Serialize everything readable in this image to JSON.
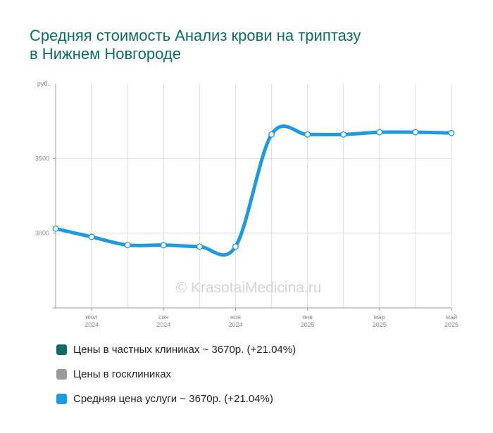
{
  "title": {
    "line1": "Средняя стоимость Анализ крови на триптазу",
    "line2": "в Нижнем Новгороде"
  },
  "watermark": "© KrasotaiMedicina.ru",
  "colors": {
    "title": "#0f6b63",
    "private": "#0f6b63",
    "public": "#9a9a9a",
    "average": "#2299dd"
  },
  "chart_data": {
    "type": "line",
    "unit_label": "руб.",
    "y_ticks": [
      "3000",
      "3500"
    ],
    "ylim": [
      2500,
      4000
    ],
    "x_ticks": [
      {
        "month": "июл",
        "year": "2024"
      },
      {
        "month": "сен",
        "year": "2024"
      },
      {
        "month": "ноя",
        "year": "2024"
      },
      {
        "month": "янв",
        "year": "2025"
      },
      {
        "month": "мар",
        "year": "2025"
      },
      {
        "month": "май",
        "year": "2025"
      }
    ],
    "x": [
      "2024-06",
      "2024-07",
      "2024-08",
      "2024-09",
      "2024-10",
      "2024-11",
      "2024-12",
      "2025-01",
      "2025-02",
      "2025-03",
      "2025-04",
      "2025-05"
    ],
    "series": [
      {
        "name": "Средняя цена услуги",
        "values": [
          3030,
          2975,
          2920,
          2920,
          2910,
          2910,
          3660,
          3660,
          3660,
          3675,
          3675,
          3670
        ]
      }
    ],
    "grid": true
  },
  "legend": [
    {
      "label": "Цены в частных клиниках ~ 3670р. (+21.04%)",
      "color": "#0f6b63"
    },
    {
      "label": "Цены в госклиниках",
      "color": "#9a9a9a"
    },
    {
      "label": "Средняя цена услуги ~ 3670р. (+21.04%)",
      "color": "#2299dd"
    }
  ]
}
